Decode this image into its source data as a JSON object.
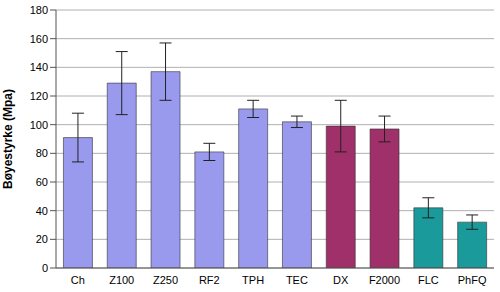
{
  "chart_data": {
    "type": "bar",
    "y_label": "Bøyestyrke (Mpa)",
    "categories": [
      "Ch",
      "Z100",
      "Z250",
      "RF2",
      "TPH",
      "TEC",
      "DX",
      "F2000",
      "FLC",
      "PhFQ"
    ],
    "values": [
      91,
      129,
      137,
      81,
      111,
      102,
      99,
      97,
      42,
      32
    ],
    "errors": [
      17,
      22,
      20,
      6,
      6,
      4,
      18,
      9,
      7,
      5
    ],
    "colors": [
      "#9999ee",
      "#9999ee",
      "#9999ee",
      "#9999ee",
      "#9999ee",
      "#9999ee",
      "#a0306a",
      "#a0306a",
      "#1a9a9a",
      "#1a9a9a"
    ],
    "ylim": [
      0,
      180
    ],
    "yticks": [
      0,
      20,
      40,
      60,
      80,
      100,
      120,
      140,
      160,
      180
    ],
    "grid": true
  }
}
